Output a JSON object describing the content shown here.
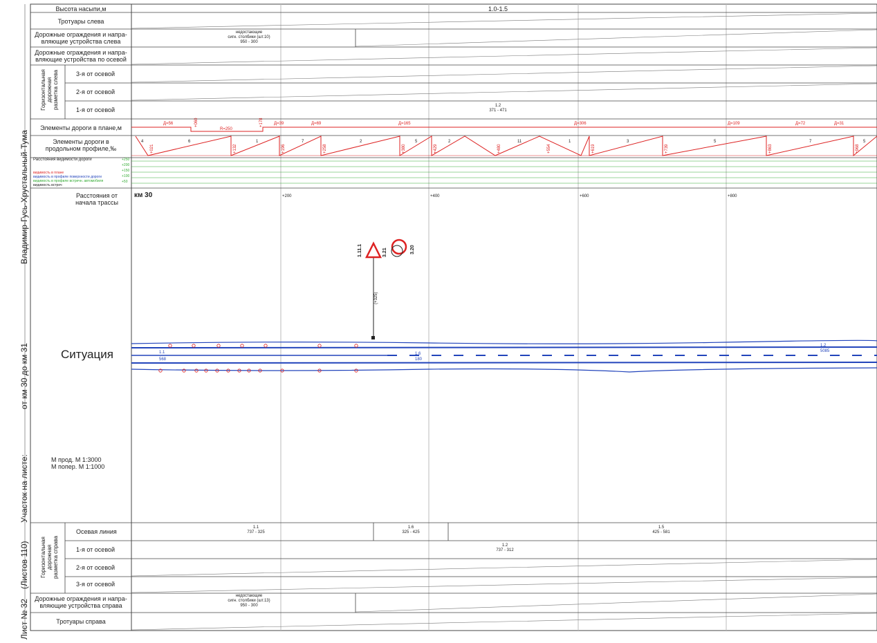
{
  "sidebar": {
    "title": "Владимир-Гусь-Хрустальный-Тума",
    "range": "от км 30  до км 31",
    "section_label": "Участок на листе:",
    "sheets": "(Листов 110)",
    "sheet_no": "Лист № 32"
  },
  "rows_top": {
    "embankment": "Высота насыпи,м",
    "embankment_value": "1.0-1.5",
    "sidewalks_left": "Тротуары слева",
    "guard_left": "Дорожные ограждения и напра-\nвляющие устройства слева",
    "guard_left_value": "недостающие\nсигн. столбики (шт.10)\n950 - 300",
    "guard_axis": "Дорожные ограждения и напра-\nвляющие устройства по осевой",
    "marking_left_group": "Горизонтальная\nдорожная\nразметка слева",
    "third_from_axis": "3-я от осевой",
    "second_from_axis": "2-я от осевой",
    "first_from_axis": "1-я от осевой",
    "first_left_value": "1.2\n371 - 471",
    "plan_elements": "Элементы дороги в плане,м",
    "profile_elements": "Элементы дороги в\nпродольном профиле,‰",
    "visibility_title": "Расстояния видимости дороги"
  },
  "plan": {
    "labels": [
      "Д=56",
      "R=250",
      "Д=39",
      "Д=69",
      "Д=165",
      "Д=306",
      "Д=109",
      "Д=72",
      "Д=31"
    ],
    "tags": [
      "+060",
      "+178"
    ]
  },
  "profile": {
    "gradients": [
      "4",
      "6",
      "1",
      "7",
      "2",
      "5",
      "2",
      "11",
      "1",
      "3",
      "5",
      "7",
      "5"
    ],
    "pks": [
      "+021",
      "+132",
      "+196",
      "+258",
      "+380",
      "+429",
      "+480",
      "+554",
      "+619",
      "+739",
      "+863",
      "+968"
    ]
  },
  "visibility": {
    "legend": [
      "видимость в плане",
      "видимость в профиле поверхности дороги",
      "видимость в профиле встречн. автомобиля",
      "видимость встреч"
    ],
    "levels": [
      "+250",
      "+200",
      "+150",
      "+100",
      "+50"
    ]
  },
  "distance": {
    "header": "Расстояния от\nначала трассы",
    "km": "км 30",
    "pickets": [
      "+200",
      "+400",
      "+600",
      "+800"
    ]
  },
  "situation": {
    "title": "Ситуация",
    "scale": "М прод.  М 1:3000\nМ попер.  М 1:1000",
    "sign_codes": [
      "1.11.1",
      "3.21",
      "3.20"
    ],
    "sign_post": "(+325)",
    "line_marks": [
      {
        "code": "1.1",
        "pos": "568"
      },
      {
        "code": "1.6",
        "pos": "180"
      },
      {
        "code": "1.2",
        "pos": "5085"
      }
    ]
  },
  "rows_bottom": {
    "marking_right_group": "Горизонтальная\nдорожная\nразметка справа",
    "axis_line": "Осевая линия",
    "axis_values": [
      "1.1\n737 - 325",
      "1.6\n325 - 425",
      "1.5\n425 - 581"
    ],
    "first_from_axis": "1-я от осевой",
    "first_right_value": "1.2\n737 - 312",
    "second_from_axis": "2-я от осевой",
    "third_from_axis": "3-я от осевой",
    "guard_right": "Дорожные ограждения и напра-\nвляющие устройства справа",
    "guard_right_value": "недостающие\nсигн. столбики (шт.13)\n950 - 300",
    "sidewalks_right": "Тротуары справа"
  },
  "colors": {
    "red": "#dd2222",
    "blue": "#2233aa",
    "green": "#33aa33",
    "grid": "#bbbbbb",
    "line": "#444444"
  }
}
